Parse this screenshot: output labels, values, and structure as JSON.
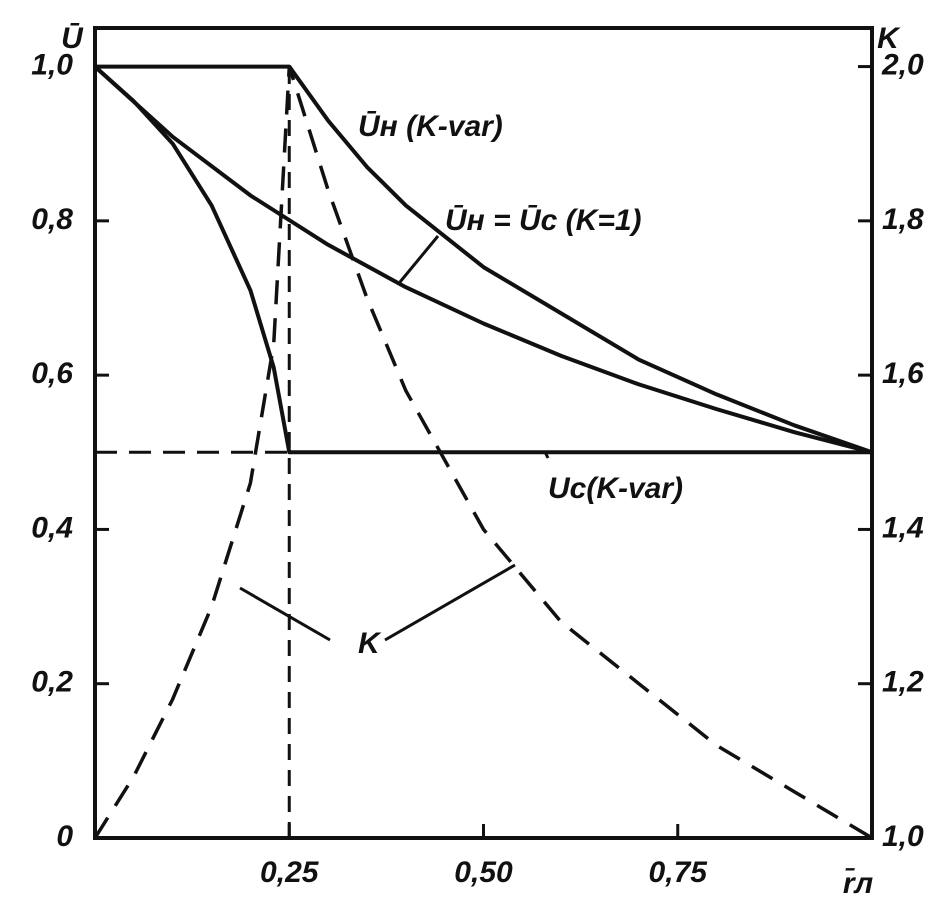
{
  "chart_data": {
    "type": "line",
    "y_label": "Ū",
    "y2_label": "K",
    "x_label": "r̄л",
    "xlim": [
      0,
      1
    ],
    "xticks": [
      {
        "value": 0.25,
        "label": "0,25"
      },
      {
        "value": 0.5,
        "label": "0,50"
      },
      {
        "value": 0.75,
        "label": "0,75"
      }
    ],
    "ylim": [
      0,
      1.05
    ],
    "yticks": [
      0,
      {
        "value": 0.2,
        "label": "0,2"
      },
      {
        "value": 0.4,
        "label": "0,4"
      },
      {
        "value": 0.6,
        "label": "0,6"
      },
      {
        "value": 0.8,
        "label": "0,8"
      },
      {
        "value": 1.0,
        "label": "1,0"
      }
    ],
    "y2lim": [
      1.0,
      2.05
    ],
    "y2ticks": [
      {
        "value": 1.0,
        "label": "1,0"
      },
      {
        "value": 1.2,
        "label": "1,2"
      },
      {
        "value": 1.4,
        "label": "1,4"
      },
      {
        "value": 1.6,
        "label": "1,6"
      },
      {
        "value": 1.8,
        "label": "1,8"
      },
      {
        "value": 2.0,
        "label": "2,0"
      }
    ],
    "series": [
      {
        "name": "Ūн (K-var)",
        "color": "#111111",
        "dash": false,
        "x": [
          0,
          0.25,
          0.3,
          0.35,
          0.4,
          0.5,
          0.6,
          0.7,
          0.8,
          0.9,
          1.0
        ],
        "values": [
          1.0,
          1.0,
          0.93,
          0.87,
          0.82,
          0.74,
          0.68,
          0.62,
          0.575,
          0.535,
          0.5
        ]
      },
      {
        "name": "Ūн = Ūс (K=1)",
        "color": "#111111",
        "dash": false,
        "x": [
          0,
          0.1,
          0.2,
          0.3,
          0.4,
          0.5,
          0.6,
          0.7,
          0.8,
          0.9,
          1.0
        ],
        "values": [
          1.0,
          0.909,
          0.833,
          0.769,
          0.714,
          0.667,
          0.625,
          0.588,
          0.556,
          0.526,
          0.5
        ]
      },
      {
        "name": "Uс(K-var)",
        "color": "#111111",
        "dash": false,
        "x": [
          0,
          0.05,
          0.1,
          0.15,
          0.2,
          0.23,
          0.25,
          1.0
        ],
        "values": [
          1.0,
          0.955,
          0.9,
          0.82,
          0.71,
          0.61,
          0.5,
          0.5
        ]
      },
      {
        "name": "K",
        "color": "#111111",
        "dash": true,
        "axis": "y2",
        "x": [
          0,
          0.05,
          0.1,
          0.15,
          0.2,
          0.23,
          0.25,
          0.3,
          0.35,
          0.4,
          0.5,
          0.6,
          0.7,
          0.8,
          0.9,
          1.0
        ],
        "values": [
          1.0,
          1.08,
          1.18,
          1.3,
          1.46,
          1.64,
          2.0,
          1.84,
          1.7,
          1.58,
          1.4,
          1.28,
          1.2,
          1.12,
          1.06,
          1.0
        ]
      }
    ]
  }
}
